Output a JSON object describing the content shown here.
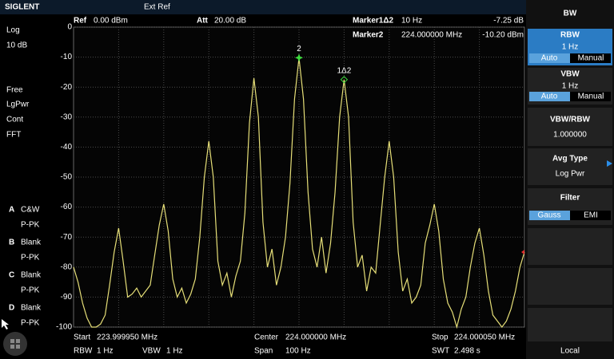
{
  "header": {
    "brand": "SIGLENT",
    "ref_source": "Ext Ref"
  },
  "status": {
    "ref_label": "Ref",
    "ref_value": "0.00 dBm",
    "att_label": "Att",
    "att_value": "20.00 dB",
    "delta_marker_label": "Marker1Δ2",
    "delta_marker_x": "10 Hz",
    "delta_marker_y": "-7.25 dB",
    "marker_label": "Marker2",
    "marker_x": "224.000000 MHz",
    "marker_y": "-10.20 dBm"
  },
  "left_panel": {
    "items": [
      "Log",
      "10 dB",
      "Free",
      "LgPwr",
      "Cont",
      "FFT"
    ],
    "traces": [
      {
        "id": "A",
        "mode": "C&W",
        "detector": "P-PK"
      },
      {
        "id": "B",
        "mode": "Blank",
        "detector": "P-PK"
      },
      {
        "id": "C",
        "mode": "Blank",
        "detector": "P-PK"
      },
      {
        "id": "D",
        "mode": "Blank",
        "detector": "P-PK"
      }
    ]
  },
  "chart_data": {
    "type": "line",
    "color": "#e6df78",
    "grid": true,
    "ylim": [
      -100,
      0
    ],
    "yticks": [
      0,
      -10,
      -20,
      -30,
      -40,
      -50,
      -60,
      -70,
      -80,
      -90,
      -100
    ],
    "values": [
      -80,
      -85,
      -92,
      -97,
      -100,
      -100,
      -99,
      -96,
      -86,
      -75,
      -67,
      -78,
      -90,
      -89,
      -87,
      -90,
      -88,
      -86,
      -76,
      -66,
      -59,
      -68,
      -84,
      -90,
      -87,
      -92,
      -89,
      -84,
      -70,
      -50,
      -38,
      -50,
      -78,
      -86,
      -82,
      -90,
      -83,
      -78,
      -62,
      -32,
      -17,
      -30,
      -65,
      -80,
      -74,
      -86,
      -80,
      -70,
      -52,
      -24,
      -10.2,
      -24,
      -55,
      -74,
      -80,
      -70,
      -82,
      -72,
      -55,
      -30,
      -17.5,
      -30,
      -65,
      -80,
      -76,
      -88,
      -80,
      -82,
      -66,
      -50,
      -38,
      -50,
      -75,
      -88,
      -84,
      -92,
      -90,
      -86,
      -72,
      -66,
      -59,
      -68,
      -84,
      -92,
      -95,
      -100,
      -94,
      -90,
      -80,
      -72,
      -67,
      -76,
      -88,
      -96,
      -98,
      -100,
      -98,
      -94,
      -88,
      -80,
      -75
    ],
    "markers": [
      {
        "label": "2"
      },
      {
        "label": "1Δ2"
      }
    ]
  },
  "footer": {
    "start_label": "Start",
    "start_value": "223.999950 MHz",
    "center_label": "Center",
    "center_value": "224.000000 MHz",
    "stop_label": "Stop",
    "stop_value": "224.000050 MHz",
    "rbw_label": "RBW",
    "rbw_value": "1 Hz",
    "vbw_label": "VBW",
    "vbw_value": "1 Hz",
    "span_label": "Span",
    "span_value": "100 Hz",
    "swt_label": "SWT",
    "swt_value": "2.498 s"
  },
  "menu": {
    "title": "BW",
    "rbw": {
      "label": "RBW",
      "value": "1 Hz",
      "auto": "Auto",
      "manual": "Manual"
    },
    "vbw": {
      "label": "VBW",
      "value": "1 Hz",
      "auto": "Auto",
      "manual": "Manual"
    },
    "ratio": {
      "label": "VBW/RBW",
      "value": "1.000000"
    },
    "avg_type": {
      "label": "Avg Type",
      "value": "Log Pwr"
    },
    "filter": {
      "label": "Filter",
      "gauss": "Gauss",
      "emi": "EMI"
    },
    "local": "Local"
  }
}
